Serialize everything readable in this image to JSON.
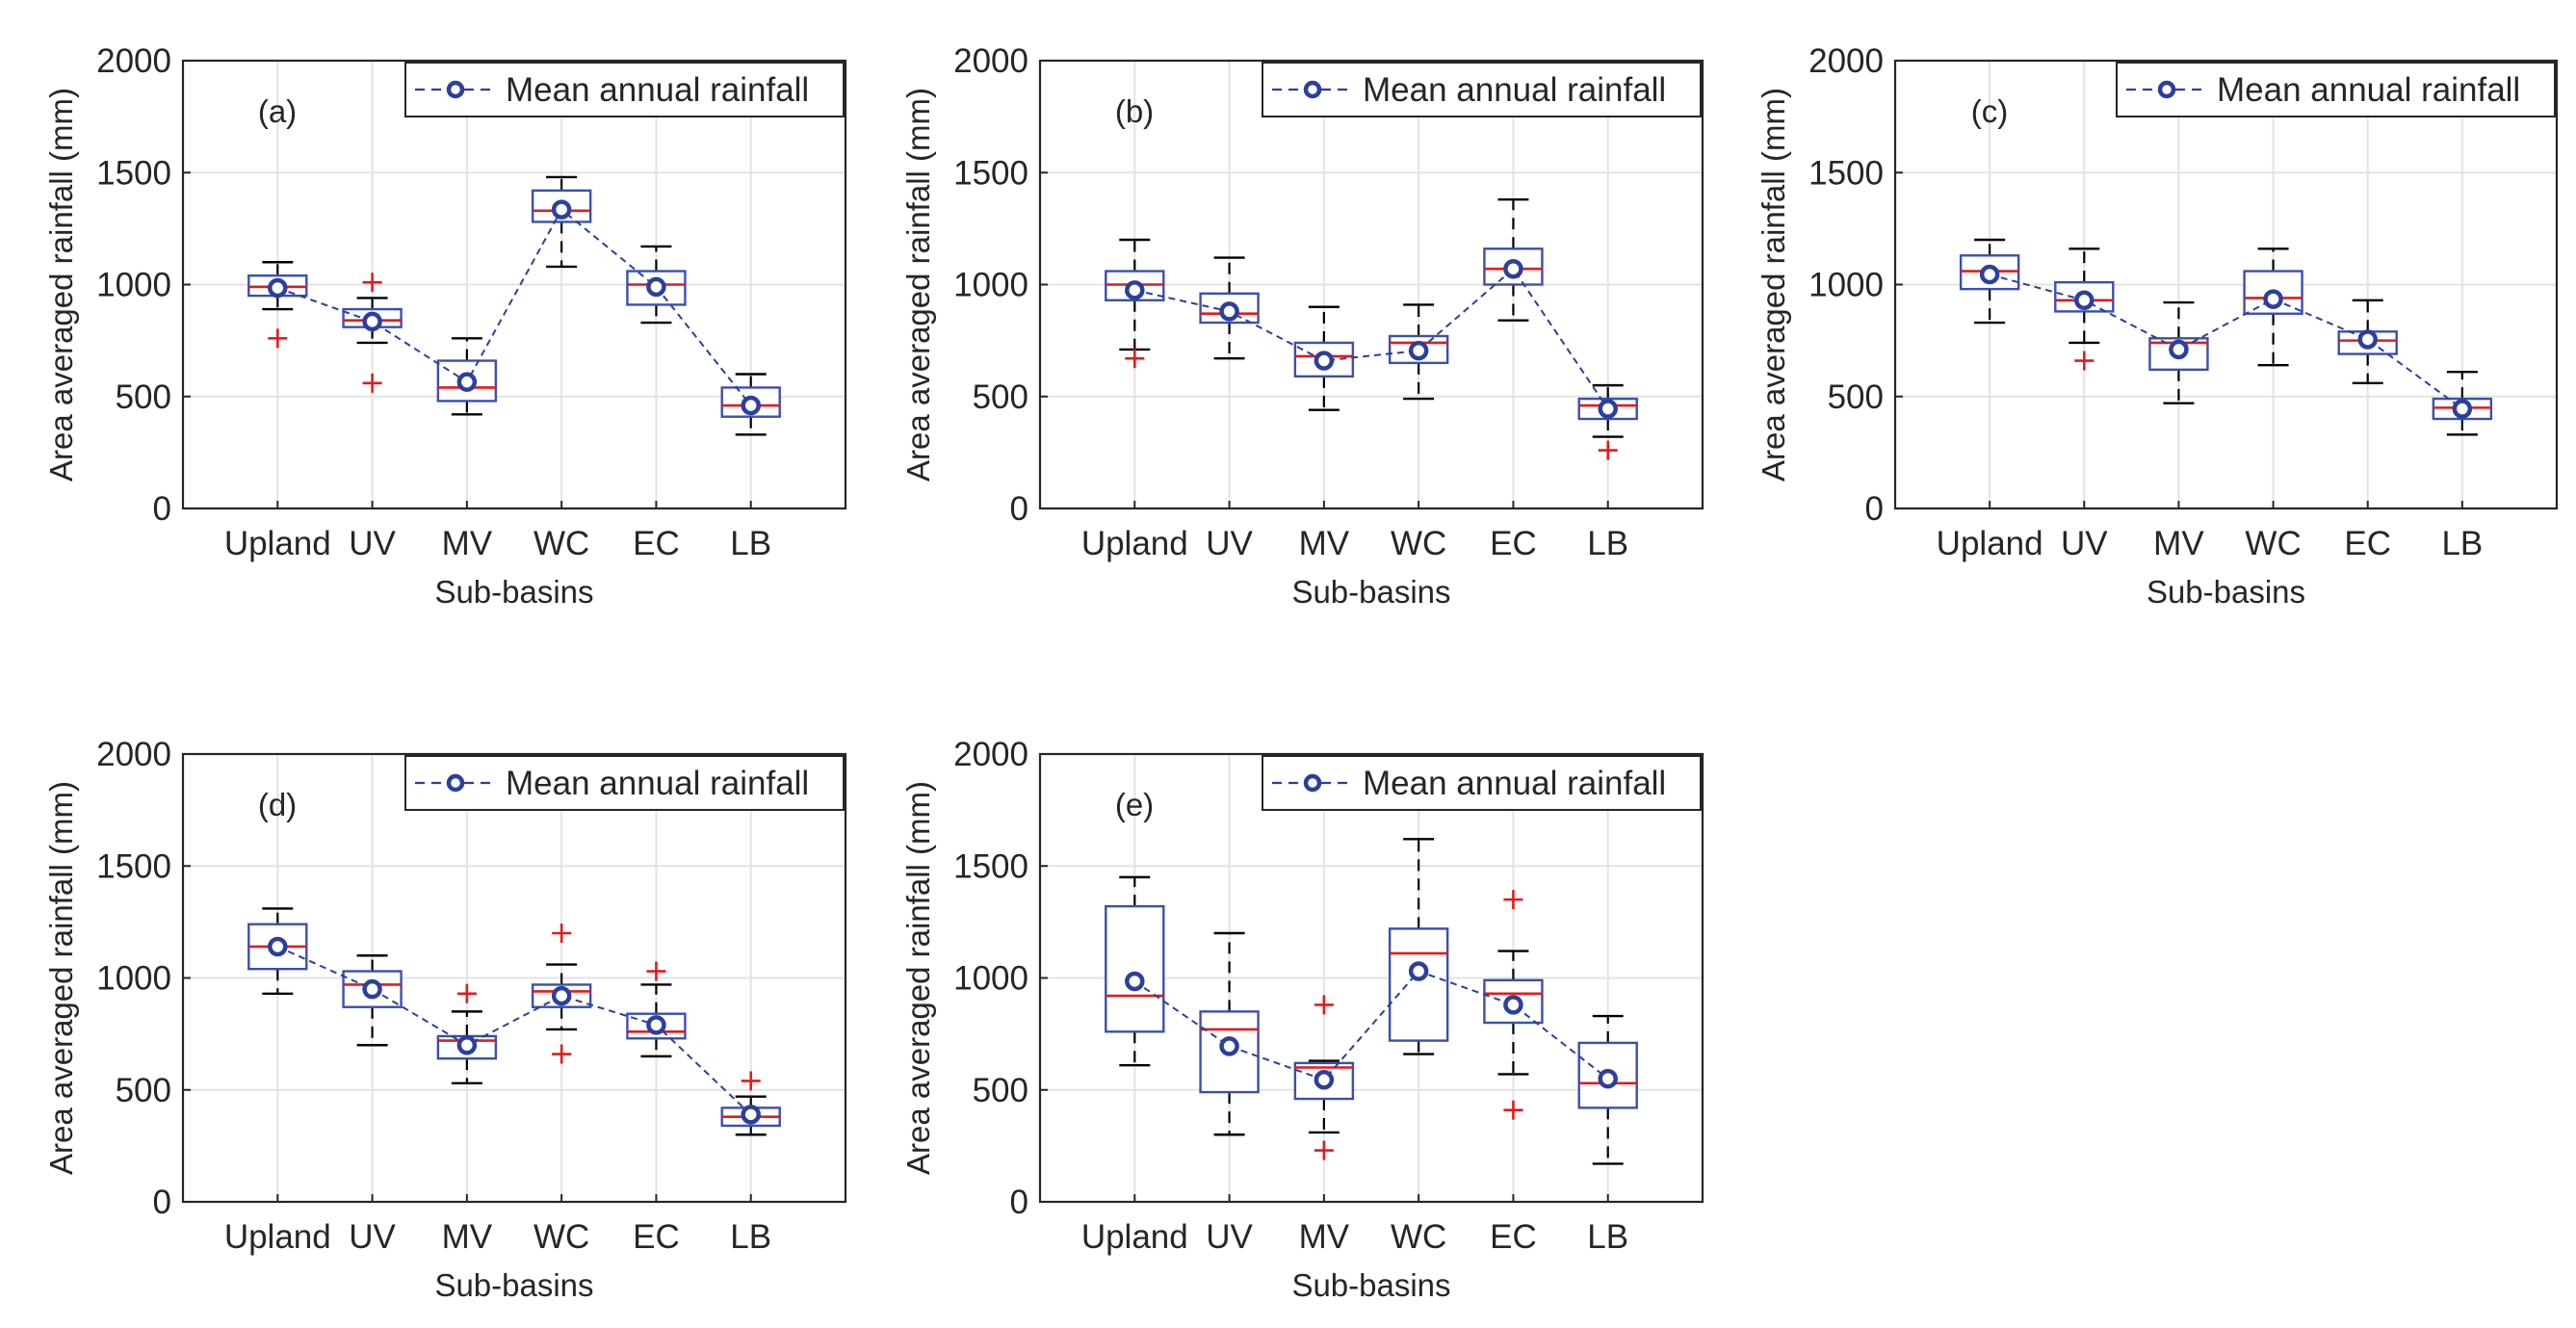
{
  "figure": {
    "legend_label": "Mean annual rainfall",
    "colors": {
      "box": "#3a4fb0",
      "median": "#e41a1c",
      "whisker": "#000000",
      "outlier": "#e41a1c",
      "mean_line": "#2b3f9e",
      "grid": "#e3e3e3",
      "axis": "#262626"
    }
  },
  "chart_data": [
    {
      "type": "box",
      "panel_label": "(a)",
      "xlabel": "Sub-basins",
      "ylabel": "Area averaged rainfall (mm)",
      "ylim": [
        0,
        2000
      ],
      "yticks": [
        0,
        500,
        1000,
        1500,
        2000
      ],
      "categories": [
        "Upland",
        "UV",
        "MV",
        "WC",
        "EC",
        "LB"
      ],
      "legend": "Mean annual rainfall",
      "boxes": [
        {
          "whisker_low": 890,
          "q1": 950,
          "median": 990,
          "q3": 1040,
          "whisker_high": 1100,
          "mean": 985,
          "outliers": [
            760
          ]
        },
        {
          "whisker_low": 740,
          "q1": 810,
          "median": 840,
          "q3": 890,
          "whisker_high": 940,
          "mean": 835,
          "outliers": [
            1010,
            560
          ]
        },
        {
          "whisker_low": 420,
          "q1": 480,
          "median": 540,
          "q3": 660,
          "whisker_high": 760,
          "mean": 565,
          "outliers": []
        },
        {
          "whisker_low": 1080,
          "q1": 1280,
          "median": 1330,
          "q3": 1420,
          "whisker_high": 1480,
          "mean": 1335,
          "outliers": []
        },
        {
          "whisker_low": 830,
          "q1": 910,
          "median": 1000,
          "q3": 1060,
          "whisker_high": 1170,
          "mean": 990,
          "outliers": []
        },
        {
          "whisker_low": 330,
          "q1": 410,
          "median": 460,
          "q3": 540,
          "whisker_high": 600,
          "mean": 460,
          "outliers": []
        }
      ]
    },
    {
      "type": "box",
      "panel_label": "(b)",
      "xlabel": "Sub-basins",
      "ylabel": "Area averaged rainfall (mm)",
      "ylim": [
        0,
        2000
      ],
      "yticks": [
        0,
        500,
        1000,
        1500,
        2000
      ],
      "categories": [
        "Upland",
        "UV",
        "MV",
        "WC",
        "EC",
        "LB"
      ],
      "legend": "Mean annual rainfall",
      "boxes": [
        {
          "whisker_low": 710,
          "q1": 930,
          "median": 1000,
          "q3": 1060,
          "whisker_high": 1200,
          "mean": 975,
          "outliers": [
            670
          ]
        },
        {
          "whisker_low": 670,
          "q1": 830,
          "median": 870,
          "q3": 960,
          "whisker_high": 1120,
          "mean": 880,
          "outliers": []
        },
        {
          "whisker_low": 440,
          "q1": 590,
          "median": 680,
          "q3": 740,
          "whisker_high": 900,
          "mean": 660,
          "outliers": []
        },
        {
          "whisker_low": 490,
          "q1": 650,
          "median": 740,
          "q3": 770,
          "whisker_high": 910,
          "mean": 705,
          "outliers": []
        },
        {
          "whisker_low": 840,
          "q1": 1000,
          "median": 1070,
          "q3": 1160,
          "whisker_high": 1380,
          "mean": 1070,
          "outliers": []
        },
        {
          "whisker_low": 320,
          "q1": 400,
          "median": 460,
          "q3": 490,
          "whisker_high": 550,
          "mean": 445,
          "outliers": [
            260
          ]
        }
      ]
    },
    {
      "type": "box",
      "panel_label": "(c)",
      "xlabel": "Sub-basins",
      "ylabel": "Area averaged rainfall (mm)",
      "ylim": [
        0,
        2000
      ],
      "yticks": [
        0,
        500,
        1000,
        1500,
        2000
      ],
      "categories": [
        "Upland",
        "UV",
        "MV",
        "WC",
        "EC",
        "LB"
      ],
      "legend": "Mean annual rainfall",
      "boxes": [
        {
          "whisker_low": 830,
          "q1": 980,
          "median": 1060,
          "q3": 1130,
          "whisker_high": 1200,
          "mean": 1045,
          "outliers": []
        },
        {
          "whisker_low": 740,
          "q1": 880,
          "median": 930,
          "q3": 1010,
          "whisker_high": 1160,
          "mean": 930,
          "outliers": [
            660
          ]
        },
        {
          "whisker_low": 470,
          "q1": 620,
          "median": 740,
          "q3": 760,
          "whisker_high": 920,
          "mean": 710,
          "outliers": []
        },
        {
          "whisker_low": 640,
          "q1": 870,
          "median": 940,
          "q3": 1060,
          "whisker_high": 1160,
          "mean": 935,
          "outliers": []
        },
        {
          "whisker_low": 560,
          "q1": 690,
          "median": 750,
          "q3": 790,
          "whisker_high": 930,
          "mean": 755,
          "outliers": []
        },
        {
          "whisker_low": 330,
          "q1": 400,
          "median": 450,
          "q3": 490,
          "whisker_high": 610,
          "mean": 445,
          "outliers": []
        }
      ]
    },
    {
      "type": "box",
      "panel_label": "(d)",
      "xlabel": "Sub-basins",
      "ylabel": "Area averaged rainfall (mm)",
      "ylim": [
        0,
        2000
      ],
      "yticks": [
        0,
        500,
        1000,
        1500,
        2000
      ],
      "categories": [
        "Upland",
        "UV",
        "MV",
        "WC",
        "EC",
        "LB"
      ],
      "legend": "Mean annual rainfall",
      "boxes": [
        {
          "whisker_low": 930,
          "q1": 1040,
          "median": 1140,
          "q3": 1240,
          "whisker_high": 1310,
          "mean": 1140,
          "outliers": []
        },
        {
          "whisker_low": 700,
          "q1": 870,
          "median": 970,
          "q3": 1030,
          "whisker_high": 1100,
          "mean": 950,
          "outliers": []
        },
        {
          "whisker_low": 530,
          "q1": 640,
          "median": 720,
          "q3": 740,
          "whisker_high": 850,
          "mean": 700,
          "outliers": [
            930
          ]
        },
        {
          "whisker_low": 770,
          "q1": 870,
          "median": 940,
          "q3": 970,
          "whisker_high": 1060,
          "mean": 920,
          "outliers": [
            1200,
            660
          ]
        },
        {
          "whisker_low": 650,
          "q1": 730,
          "median": 760,
          "q3": 840,
          "whisker_high": 970,
          "mean": 790,
          "outliers": [
            1030
          ]
        },
        {
          "whisker_low": 300,
          "q1": 340,
          "median": 380,
          "q3": 420,
          "whisker_high": 470,
          "mean": 390,
          "outliers": [
            540
          ]
        }
      ]
    },
    {
      "type": "box",
      "panel_label": "(e)",
      "xlabel": "Sub-basins",
      "ylabel": "Area averaged rainfall (mm)",
      "ylim": [
        0,
        2000
      ],
      "yticks": [
        0,
        500,
        1000,
        1500,
        2000
      ],
      "categories": [
        "Upland",
        "UV",
        "MV",
        "WC",
        "EC",
        "LB"
      ],
      "legend": "Mean annual rainfall",
      "boxes": [
        {
          "whisker_low": 610,
          "q1": 760,
          "median": 920,
          "q3": 1320,
          "whisker_high": 1450,
          "mean": 985,
          "outliers": []
        },
        {
          "whisker_low": 300,
          "q1": 490,
          "median": 770,
          "q3": 850,
          "whisker_high": 1200,
          "mean": 695,
          "outliers": []
        },
        {
          "whisker_low": 310,
          "q1": 460,
          "median": 600,
          "q3": 620,
          "whisker_high": 630,
          "mean": 545,
          "outliers": [
            880,
            230
          ]
        },
        {
          "whisker_low": 660,
          "q1": 720,
          "median": 1110,
          "q3": 1220,
          "whisker_high": 1620,
          "mean": 1030,
          "outliers": []
        },
        {
          "whisker_low": 570,
          "q1": 800,
          "median": 930,
          "q3": 990,
          "whisker_high": 1120,
          "mean": 880,
          "outliers": [
            1350,
            410
          ]
        },
        {
          "whisker_low": 170,
          "q1": 420,
          "median": 530,
          "q3": 710,
          "whisker_high": 830,
          "mean": 550,
          "outliers": []
        }
      ]
    }
  ]
}
